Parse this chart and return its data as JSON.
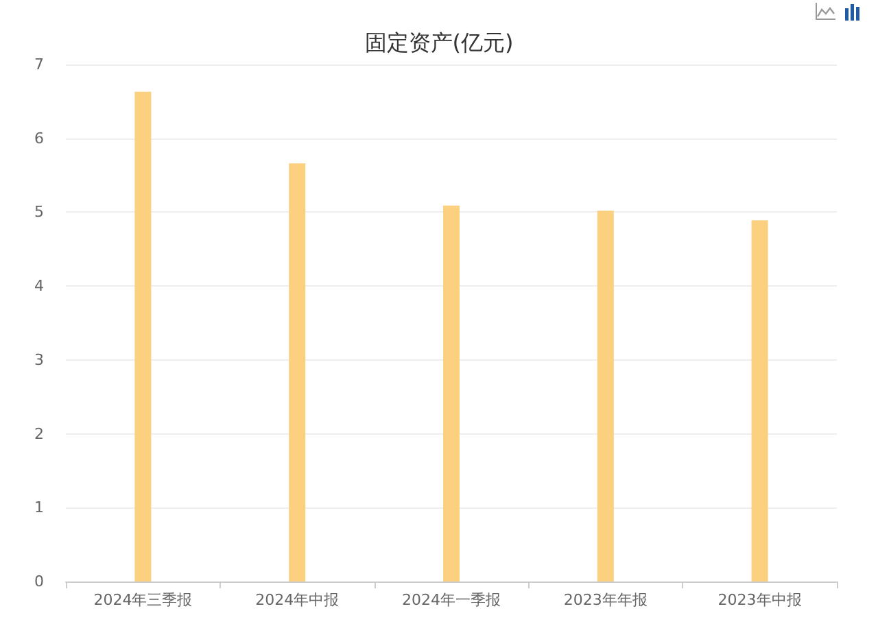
{
  "chart_data": {
    "type": "bar",
    "title": "固定资产(亿元)",
    "categories": [
      "2024年三季报",
      "2024年中报",
      "2024年一季报",
      "2023年年报",
      "2023年中报"
    ],
    "values": [
      6.63,
      5.66,
      5.09,
      5.02,
      4.89
    ],
    "color": "#fbd07f",
    "ylim": [
      0,
      7
    ],
    "yticks": [
      0,
      1,
      2,
      3,
      4,
      5,
      6,
      7
    ],
    "grid": "y"
  }
}
